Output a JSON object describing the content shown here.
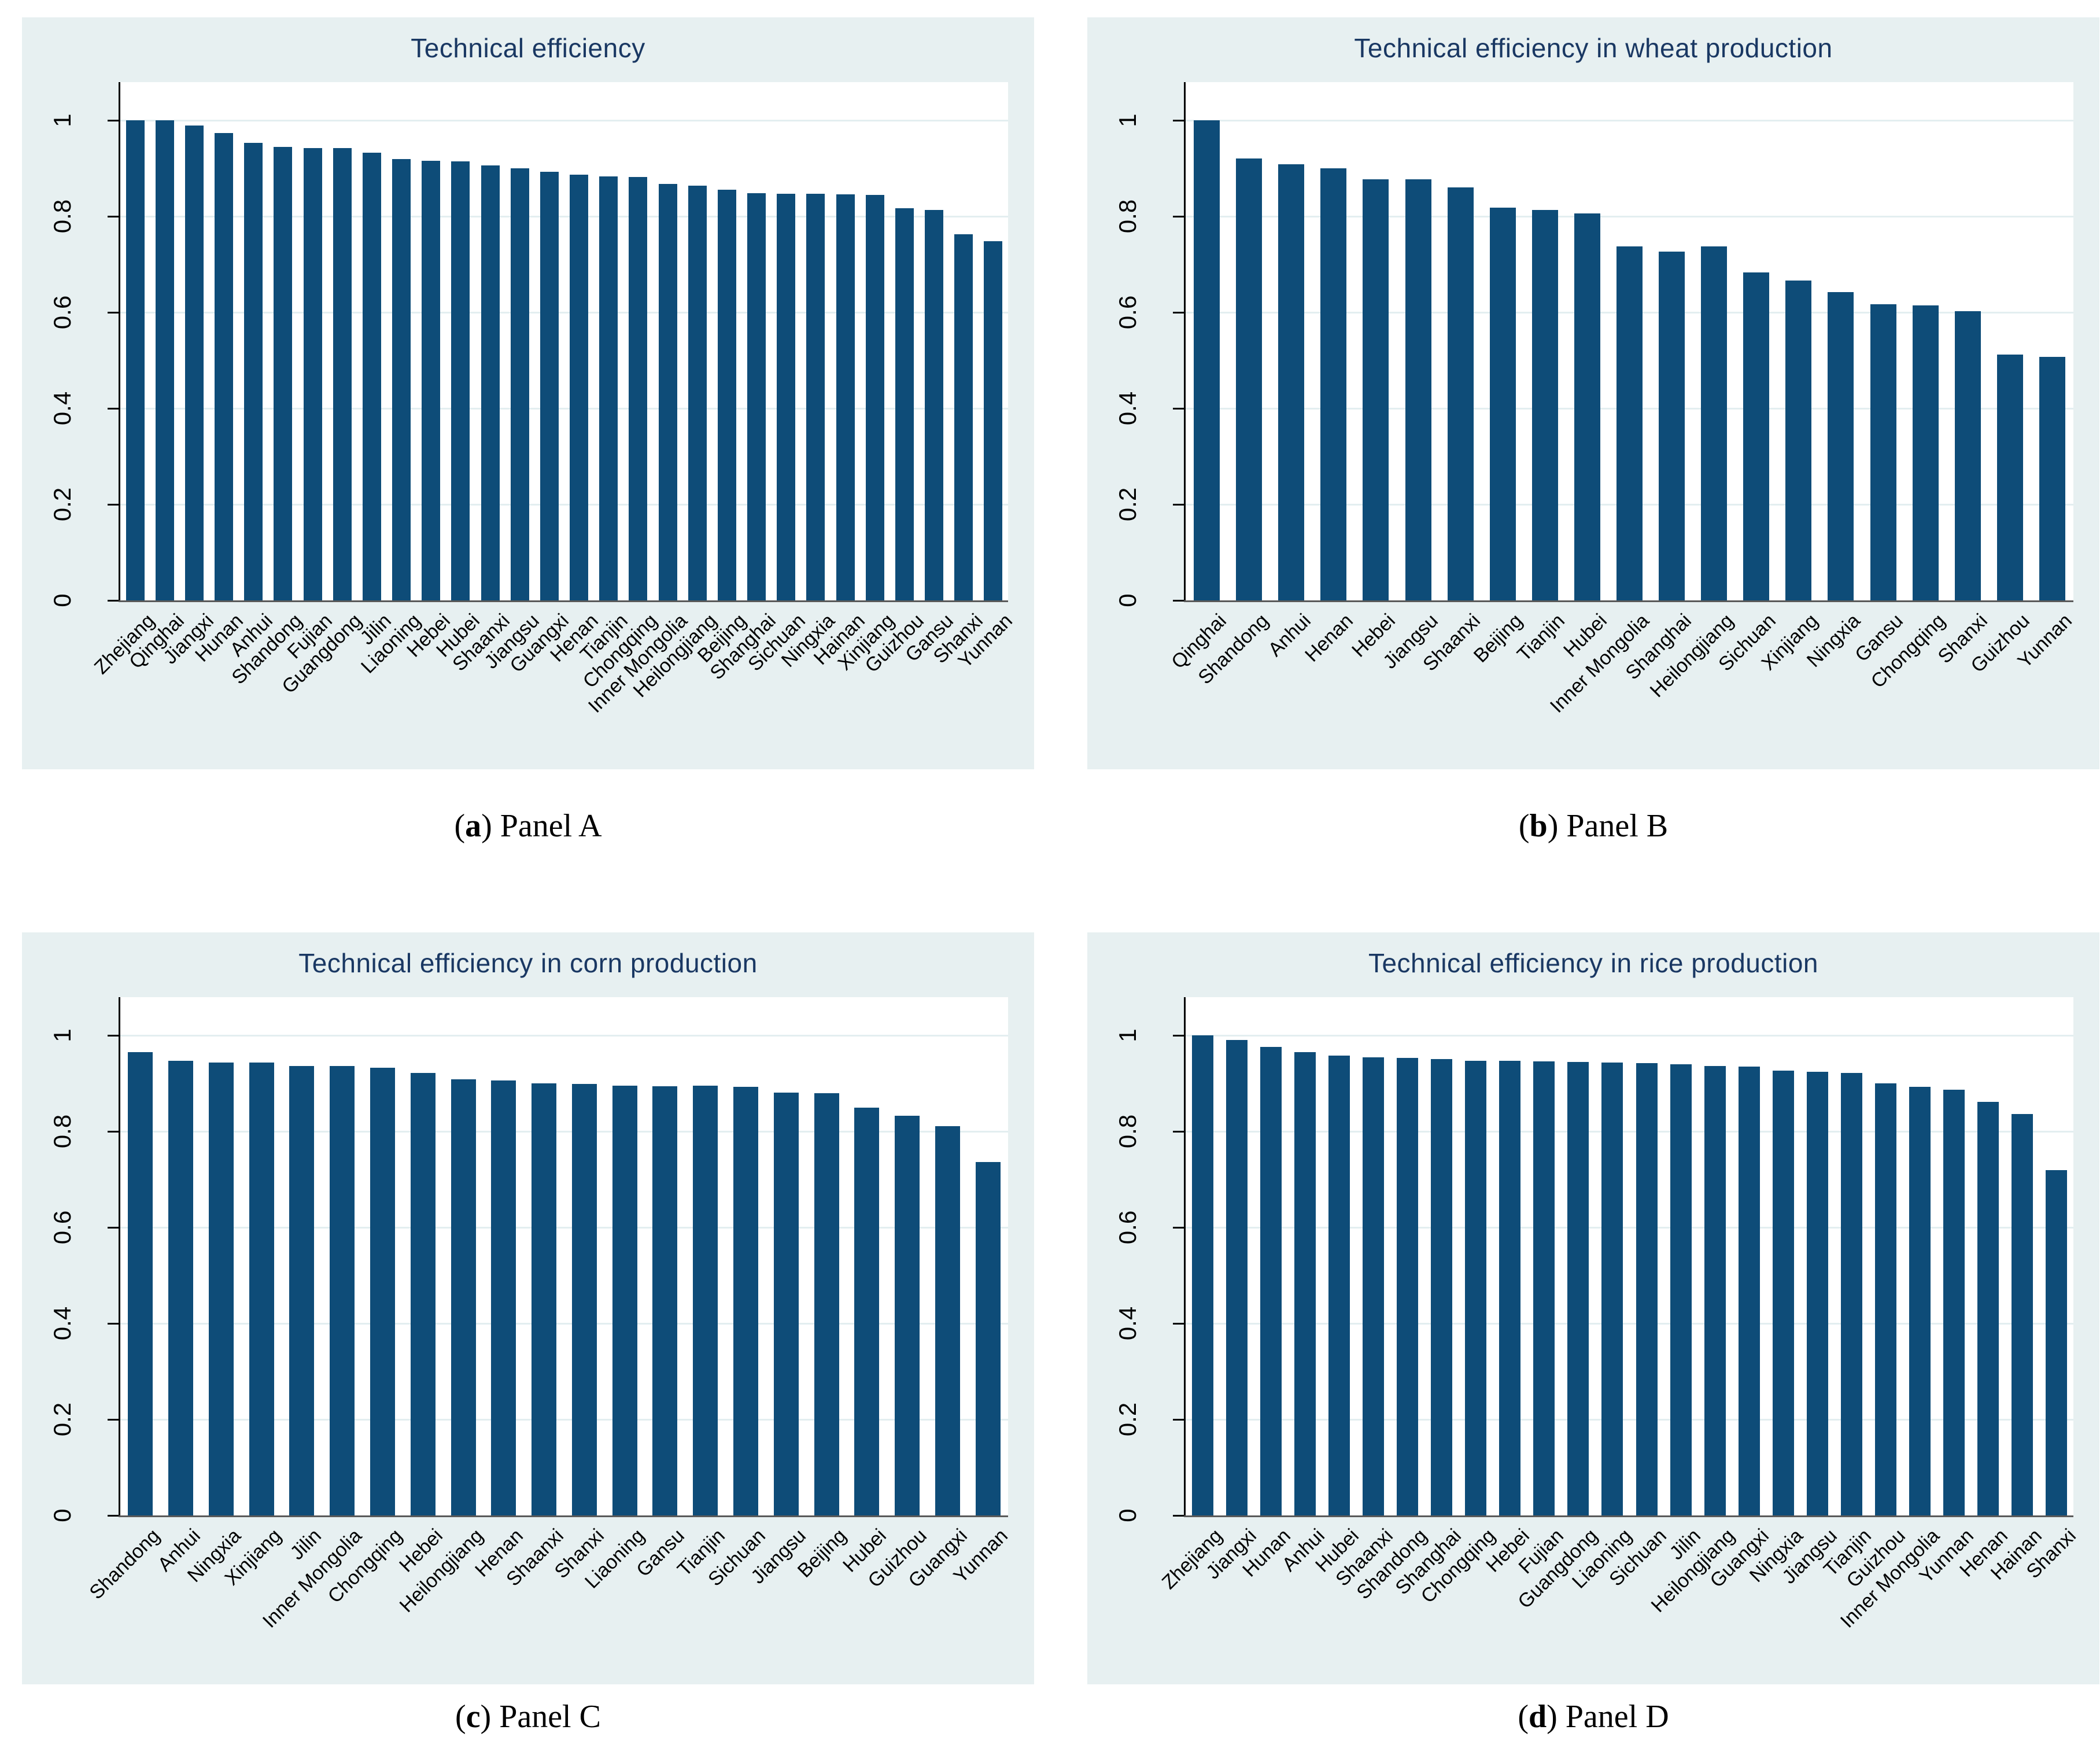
{
  "colors": {
    "bar": "#0e4c78",
    "panel_background": "#e7f0f1",
    "plot_background": "#ffffff",
    "gridline": "#e3eef0",
    "title": "#1a3863",
    "x_axis_line": "#595959",
    "y_axis_line": "#000000"
  },
  "captions": [
    {
      "pre": "(",
      "letter": "a",
      "post": ") Panel A"
    },
    {
      "pre": "(",
      "letter": "b",
      "post": ") Panel B"
    },
    {
      "pre": "(",
      "letter": "c",
      "post": ") Panel C"
    },
    {
      "pre": "(",
      "letter": "d",
      "post": ") Panel D"
    }
  ],
  "chart_data": [
    {
      "type": "bar",
      "title": "Technical efficiency",
      "xlabel": "",
      "ylabel": "",
      "ylim": [
        0,
        1.08
      ],
      "yticks": [
        0,
        0.2,
        0.4,
        0.6,
        0.8,
        1
      ],
      "ytick_labels": [
        "0",
        "0.2",
        "0.4",
        "0.6",
        "0.8",
        "1"
      ],
      "grid": true,
      "legend": "none",
      "categories": [
        "Zhejiang",
        "Qinghai",
        "Jiangxi",
        "Hunan",
        "Anhui",
        "Shandong",
        "Fujian",
        "Guangdong",
        "Jilin",
        "Liaoning",
        "Hebei",
        "Hubei",
        "Shaanxi",
        "Jiangsu",
        "Guangxi",
        "Henan",
        "Tianjin",
        "Chongqing",
        "Inner Mongolia",
        "Heilongjiang",
        "Beijing",
        "Shanghai",
        "Sichuan",
        "Ningxia",
        "Hainan",
        "Xinjiang",
        "Guizhou",
        "Gansu",
        "Shanxi",
        "Yunnan"
      ],
      "values": [
        1.0,
        1.0,
        0.99,
        0.974,
        0.953,
        0.945,
        0.943,
        0.943,
        0.933,
        0.92,
        0.916,
        0.915,
        0.906,
        0.901,
        0.893,
        0.887,
        0.884,
        0.882,
        0.868,
        0.864,
        0.856,
        0.848,
        0.847,
        0.847,
        0.846,
        0.845,
        0.817,
        0.814,
        0.763,
        0.748
      ]
    },
    {
      "type": "bar",
      "title": "Technical efficiency in wheat production",
      "xlabel": "",
      "ylabel": "",
      "ylim": [
        0,
        1.08
      ],
      "yticks": [
        0,
        0.2,
        0.4,
        0.6,
        0.8,
        1
      ],
      "ytick_labels": [
        "0",
        "0.2",
        "0.4",
        "0.6",
        "0.8",
        "1"
      ],
      "grid": true,
      "legend": "none",
      "categories": [
        "Qinghai",
        "Shandong",
        "Anhui",
        "Henan",
        "Hebei",
        "Jiangsu",
        "Shaanxi",
        "Beijing",
        "Tianjin",
        "Hubei",
        "Inner Mongolia",
        "Shanghai",
        "Heilongjiang",
        "Sichuan",
        "Xinjiang",
        "Ningxia",
        "Gansu",
        "Chongqing",
        "Shanxi",
        "Guizhou",
        "Yunnan"
      ],
      "values": [
        1.0,
        0.921,
        0.909,
        0.901,
        0.878,
        0.877,
        0.861,
        0.818,
        0.814,
        0.806,
        0.738,
        0.727,
        0.738,
        0.684,
        0.667,
        0.643,
        0.617,
        0.615,
        0.603,
        0.512,
        0.507
      ]
    },
    {
      "type": "bar",
      "title": "Technical efficiency in corn production",
      "xlabel": "",
      "ylabel": "",
      "ylim": [
        0,
        1.08
      ],
      "yticks": [
        0,
        0.2,
        0.4,
        0.6,
        0.8,
        1
      ],
      "ytick_labels": [
        "0",
        "0.2",
        "0.4",
        "0.6",
        "0.8",
        "1"
      ],
      "grid": true,
      "legend": "none",
      "categories": [
        "Shandong",
        "Anhui",
        "Ningxia",
        "Xinjiang",
        "Jilin",
        "Inner Mongolia",
        "Chongqing",
        "Hebei",
        "Heilongjiang",
        "Henan",
        "Shaanxi",
        "Shanxi",
        "Liaoning",
        "Gansu",
        "Tianjin",
        "Sichuan",
        "Jiangsu",
        "Beijing",
        "Hubei",
        "Guizhou",
        "Guangxi",
        "Yunnan"
      ],
      "values": [
        0.965,
        0.948,
        0.944,
        0.944,
        0.937,
        0.937,
        0.933,
        0.922,
        0.909,
        0.907,
        0.9,
        0.899,
        0.895,
        0.894,
        0.895,
        0.893,
        0.881,
        0.88,
        0.85,
        0.833,
        0.811,
        0.737
      ]
    },
    {
      "type": "bar",
      "title": "Technical efficiency in rice production",
      "xlabel": "",
      "ylabel": "",
      "ylim": [
        0,
        1.08
      ],
      "yticks": [
        0,
        0.2,
        0.4,
        0.6,
        0.8,
        1
      ],
      "ytick_labels": [
        "0",
        "0.2",
        "0.4",
        "0.6",
        "0.8",
        "1"
      ],
      "grid": true,
      "legend": "none",
      "categories": [
        "Zhejiang",
        "Jiangxi",
        "Hunan",
        "Anhui",
        "Hubei",
        "Shaanxi",
        "Shandong",
        "Shanghai",
        "Chongqing",
        "Hebei",
        "Fujian",
        "Guangdong",
        "Liaoning",
        "Sichuan",
        "Jilin",
        "Heilongjiang",
        "Guangxi",
        "Ningxia",
        "Jiangsu",
        "Tianjin",
        "Guizhou",
        "Inner Mongolia",
        "Yunnan",
        "Henan",
        "Hainan",
        "Shanxi"
      ],
      "values": [
        1.0,
        0.991,
        0.976,
        0.965,
        0.958,
        0.955,
        0.953,
        0.951,
        0.948,
        0.947,
        0.946,
        0.945,
        0.944,
        0.942,
        0.94,
        0.936,
        0.935,
        0.927,
        0.925,
        0.922,
        0.901,
        0.893,
        0.887,
        0.862,
        0.836,
        0.72
      ]
    }
  ]
}
